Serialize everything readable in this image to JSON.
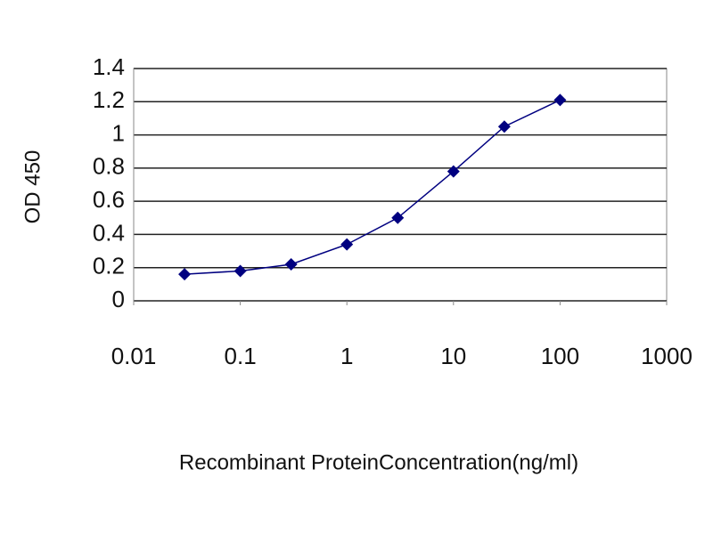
{
  "chart_data": {
    "type": "line",
    "x_label": "Recombinant ProteinConcentration(ng/ml)",
    "y_label": "OD 450",
    "x": [
      0.03,
      0.1,
      0.3,
      1,
      3,
      10,
      30,
      100
    ],
    "series": [
      {
        "color": "#000080",
        "values": [
          0.16,
          0.18,
          0.22,
          0.34,
          0.5,
          0.78,
          1.05,
          1.21
        ]
      }
    ],
    "xscale": "log",
    "xlim": [
      0.01,
      1000
    ],
    "xticks": [
      0.01,
      0.1,
      1,
      10,
      100,
      1000
    ],
    "ylim": [
      0,
      1.4
    ],
    "yticks": [
      0,
      0.2,
      0.4,
      0.6,
      0.8,
      1,
      1.2,
      1.4
    ],
    "grid": true
  }
}
